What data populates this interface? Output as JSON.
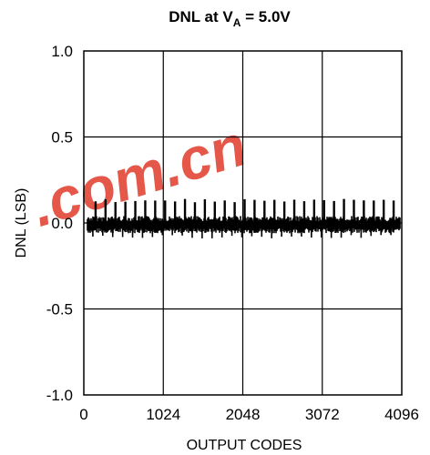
{
  "chart_data": {
    "type": "line",
    "title": {
      "prefix": "DNL at V",
      "subscript": "A",
      "suffix": " = 5.0V"
    },
    "xlabel": "OUTPUT CODES",
    "ylabel": "DNL (LSB)",
    "xlim": [
      0,
      4096
    ],
    "ylim": [
      -1.0,
      1.0
    ],
    "x_ticks": [
      0,
      1024,
      2048,
      3072,
      4096
    ],
    "x_tick_labels": [
      "0",
      "1024",
      "2048",
      "3072",
      "4096"
    ],
    "y_ticks": [
      1.0,
      0.5,
      0.0,
      -0.5,
      -1.0
    ],
    "y_tick_labels": [
      "1.0",
      "0.5",
      "0.0",
      "-0.5",
      "-1.0"
    ],
    "grid": true,
    "series": [
      {
        "description": "noise band about 0 LSB with periodic spikes",
        "band": [
          -0.06,
          0.04
        ],
        "spike_period_codes": 128,
        "spike_high": 0.14,
        "spike_low": -0.09,
        "color": "#000000"
      }
    ]
  },
  "watermark": {
    "text": ".com.cn",
    "color": "#e03a2a"
  }
}
